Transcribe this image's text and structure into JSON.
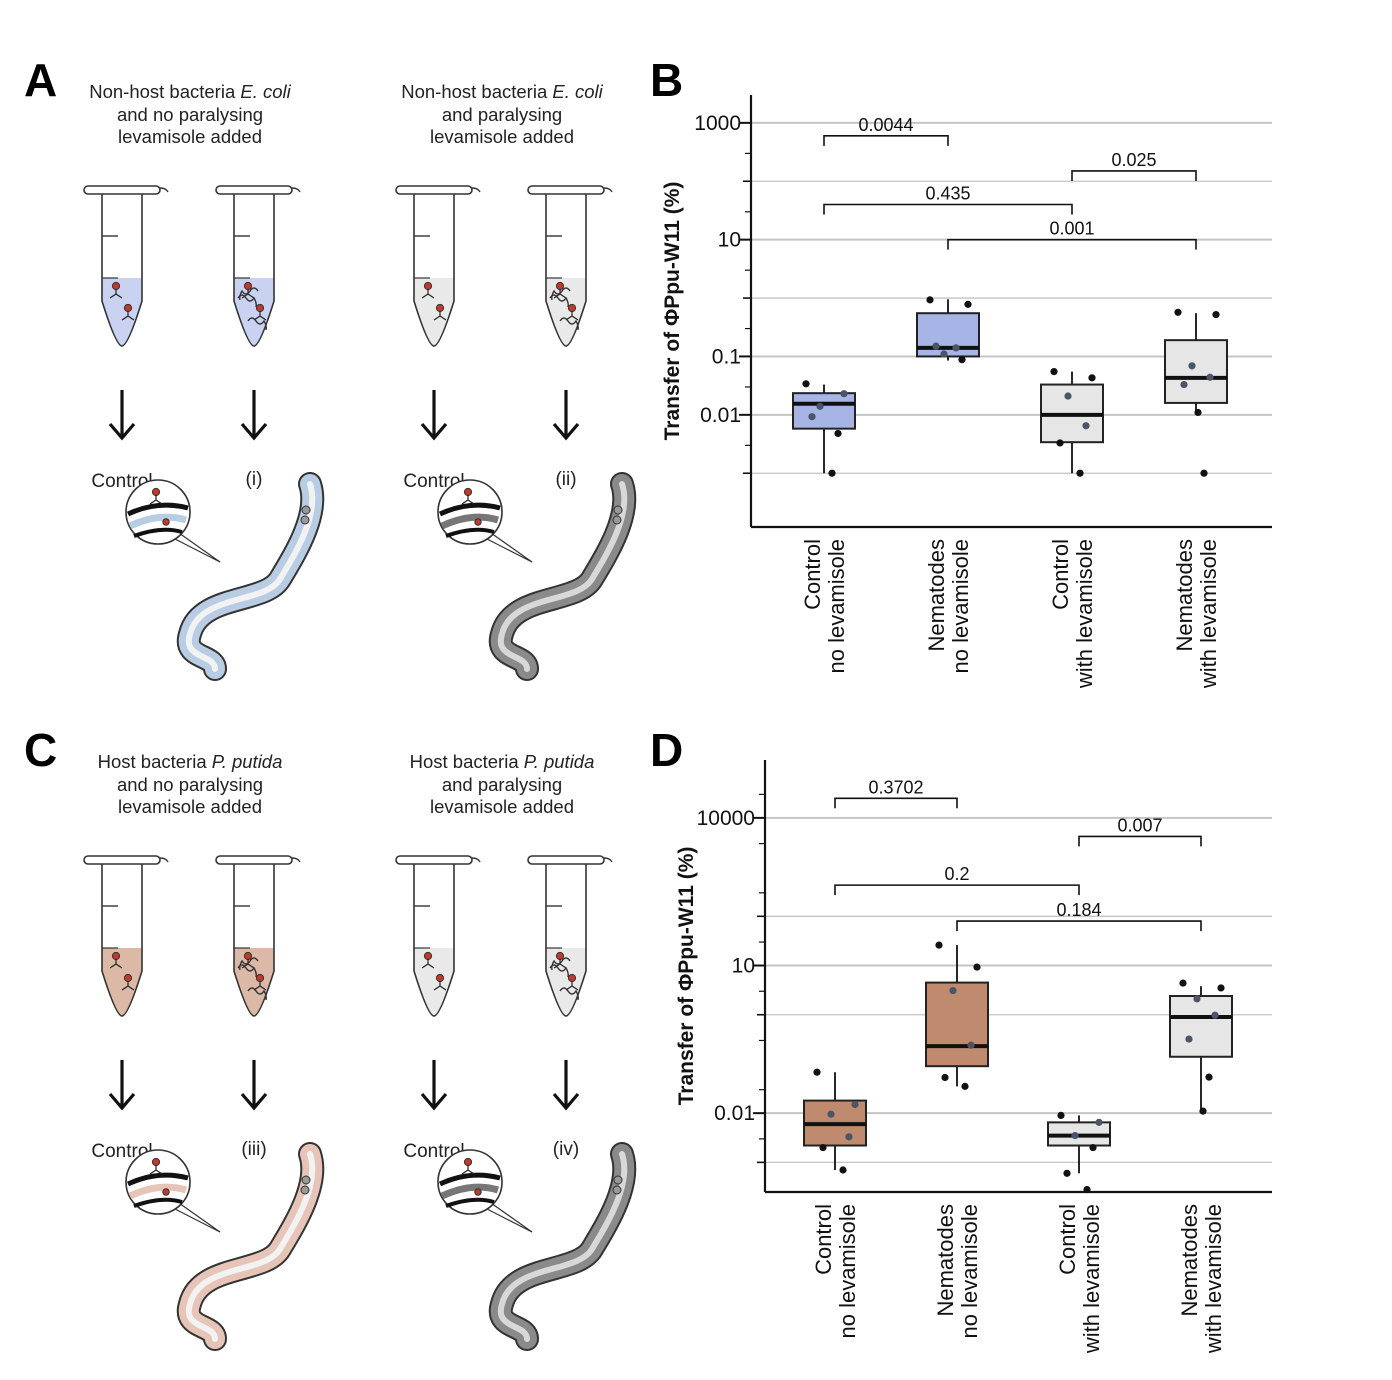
{
  "panels": {
    "A": {
      "letter": "A",
      "left_caption": [
        "Non-host bacteria ",
        "E. coli",
        "and no paralysing",
        "levamisole added"
      ],
      "right_caption": [
        "Non-host bacteria ",
        "E. coli",
        "and paralysing",
        "levamisole added"
      ],
      "labels": [
        "Control",
        "(i)",
        "Control",
        "(ii)"
      ],
      "medium_color": "#c9d2f0",
      "worm_color": "#b8cde4"
    },
    "C": {
      "letter": "C",
      "left_caption": [
        "Host bacteria ",
        "P. putida",
        "and no paralysing",
        "levamisole added"
      ],
      "right_caption": [
        "Host bacteria ",
        "P. putida",
        "and paralysing",
        "levamisole added"
      ],
      "labels": [
        "Control",
        "(iii)",
        "Control",
        "(iv)"
      ],
      "medium_color": "#dcb9a6",
      "worm_color": "#e6c5b8"
    }
  },
  "chart_data": [
    {
      "panel": "B",
      "type": "box",
      "ylabel": "Transfer of ΦPpu-W11 (%)",
      "yscale": "log",
      "ylim": [
        0.00012,
        3000
      ],
      "major_ticks": [
        {
          "value": 0.01,
          "label": "0.01"
        },
        {
          "value": 0.1,
          "label": "0.1"
        },
        {
          "value": 10,
          "label": "10"
        },
        {
          "value": 1000,
          "label": "1000"
        }
      ],
      "minor_ticks": [
        0.001,
        1,
        100
      ],
      "categories": [
        [
          "Control",
          "no levamisole"
        ],
        [
          "Nematodes",
          "no levamisole"
        ],
        [
          "Control",
          "with levamisole"
        ],
        [
          "Nematodes",
          "with levamisole"
        ]
      ],
      "colors": [
        "#a7b5e6",
        "#a7b5e6",
        "#e6e6e6",
        "#e6e6e6"
      ],
      "boxes": [
        {
          "q1": 0.0058,
          "median": 0.0155,
          "q3": 0.0235,
          "wlow": 0.001,
          "whigh": 0.033
        },
        {
          "q1": 0.1,
          "median": 0.14,
          "q3": 0.55,
          "wlow": 0.085,
          "whigh": 0.95
        },
        {
          "q1": 0.0034,
          "median": 0.01,
          "q3": 0.033,
          "wlow": 0.001,
          "whigh": 0.055
        },
        {
          "q1": 0.016,
          "median": 0.043,
          "q3": 0.19,
          "wlow": 0.01,
          "whigh": 0.55
        }
      ],
      "points": [
        [
          0.034,
          0.023,
          0.014,
          0.0048,
          0.0093,
          0.001
        ],
        [
          0.93,
          0.78,
          0.11,
          0.088,
          0.15,
          0.14
        ],
        [
          0.055,
          0.043,
          0.021,
          0.0065,
          0.0033,
          0.001
        ],
        [
          0.57,
          0.52,
          0.069,
          0.044,
          0.033,
          0.001,
          0.011
        ]
      ],
      "comparisons": [
        {
          "from": 0,
          "to": 1,
          "y": 600,
          "label": "0.0044"
        },
        {
          "from": 2,
          "to": 3,
          "y": 150,
          "label": "0.025"
        },
        {
          "from": 0,
          "to": 2,
          "y": 40,
          "label": "0.435"
        },
        {
          "from": 1,
          "to": 3,
          "y": 10,
          "label": "0.001"
        }
      ]
    },
    {
      "panel": "D",
      "type": "box",
      "ylabel": "Transfer of ΦPpu-W11 (%)",
      "yscale": "log",
      "ylim": [
        0.00025,
        150000
      ],
      "major_ticks": [
        {
          "value": 0.01,
          "label": "0.01"
        },
        {
          "value": 10,
          "label": "10"
        },
        {
          "value": 10000,
          "label": "10000"
        }
      ],
      "minor_ticks": [
        0.001,
        1,
        100
      ],
      "categories": [
        [
          "Control",
          "no levamisole"
        ],
        [
          "Nematodes",
          "no levamisole"
        ],
        [
          "Control",
          "with levamisole"
        ],
        [
          "Nematodes",
          "with levamisole"
        ]
      ],
      "colors": [
        "#bf8a6d",
        "#bf8a6d",
        "#e6e6e6",
        "#e6e6e6"
      ],
      "boxes": [
        {
          "q1": 0.0022,
          "median": 0.006,
          "q3": 0.018,
          "wlow": 0.0007,
          "whigh": 0.068
        },
        {
          "q1": 0.09,
          "median": 0.23,
          "q3": 4.5,
          "wlow": 0.035,
          "whigh": 26
        },
        {
          "q1": 0.0022,
          "median": 0.0035,
          "q3": 0.0065,
          "wlow": 0.0006,
          "whigh": 0.009
        },
        {
          "q1": 0.14,
          "median": 0.9,
          "q3": 2.4,
          "wlow": 0.01,
          "whigh": 3.8
        }
      ],
      "points": [
        [
          0.068,
          0.015,
          0.0095,
          0.0033,
          0.002,
          0.0007
        ],
        [
          26,
          9.3,
          3.1,
          0.24,
          0.053,
          0.035
        ],
        [
          0.009,
          0.0065,
          0.0035,
          0.002,
          0.0006,
          0.00028
        ],
        [
          4.4,
          3.5,
          2.1,
          0.98,
          0.32,
          0.054,
          0.011
        ]
      ],
      "comparisons": [
        {
          "from": 0,
          "to": 1,
          "y": 25000,
          "label": "0.3702"
        },
        {
          "from": 2,
          "to": 3,
          "y": 4200,
          "label": "0.007"
        },
        {
          "from": 0,
          "to": 2,
          "y": 430,
          "label": "0.2"
        },
        {
          "from": 1,
          "to": 3,
          "y": 80,
          "label": "0.184"
        }
      ]
    }
  ]
}
